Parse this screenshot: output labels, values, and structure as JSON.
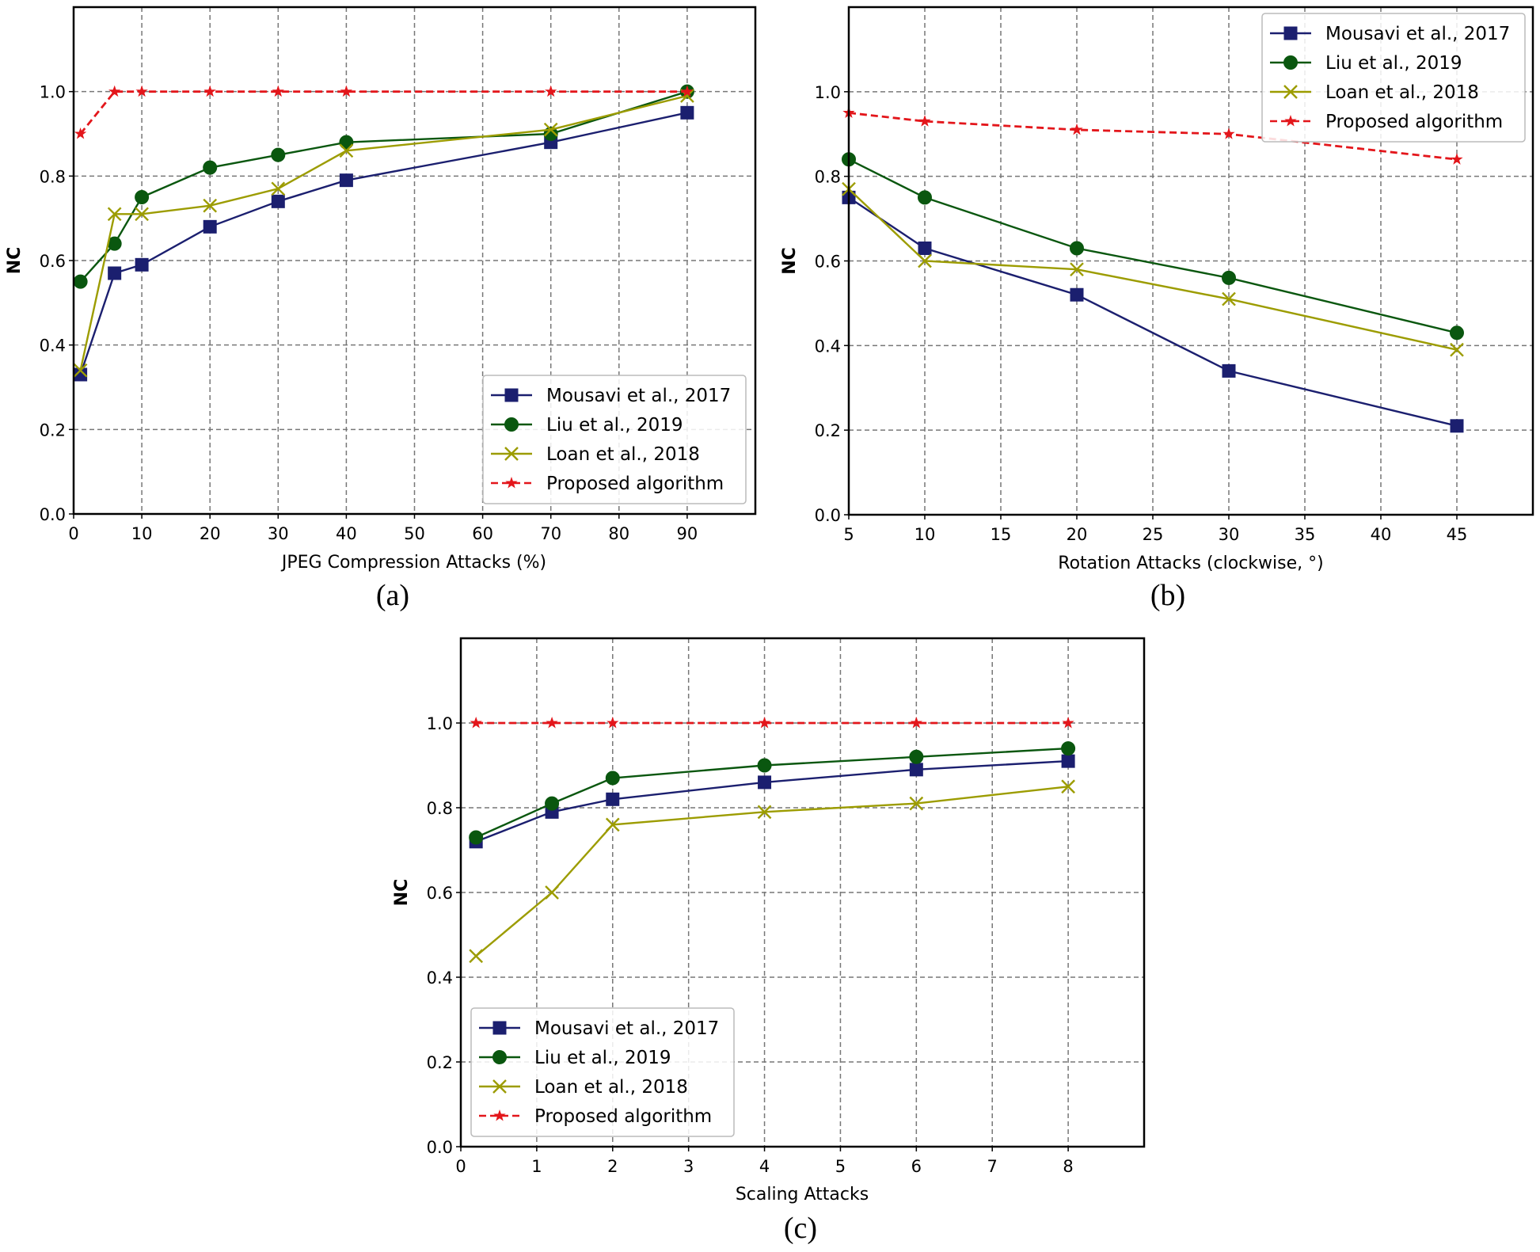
{
  "chart_data": [
    {
      "type": "line",
      "caption": "(a)",
      "xlabel": "JPEG Compression Attacks (%)",
      "ylabel": "NC",
      "xlim": [
        0,
        100
      ],
      "ylim": [
        0,
        1.2
      ],
      "xticks": [
        0,
        10,
        20,
        30,
        40,
        50,
        60,
        70,
        80,
        90
      ],
      "yticks": [
        0.0,
        0.2,
        0.4,
        0.6,
        0.8,
        1.0
      ],
      "grid": true,
      "legend_position": "lower-right",
      "x": [
        1,
        6,
        10,
        20,
        30,
        40,
        70,
        90
      ],
      "series": [
        {
          "name": "Mousavi et al., 2017",
          "marker": "square",
          "color": "#1b1f6f",
          "dashed": false,
          "values": [
            0.33,
            0.57,
            0.59,
            0.68,
            0.74,
            0.79,
            0.88,
            0.95
          ]
        },
        {
          "name": "Liu et al., 2019",
          "marker": "circle",
          "color": "#0a570f",
          "dashed": false,
          "values": [
            0.55,
            0.64,
            0.75,
            0.82,
            0.85,
            0.88,
            0.9,
            1.0
          ]
        },
        {
          "name": "Loan et al., 2018",
          "marker": "x",
          "color": "#9c9c00",
          "dashed": false,
          "values": [
            0.34,
            0.71,
            0.71,
            0.73,
            0.77,
            0.86,
            0.91,
            0.99
          ]
        },
        {
          "name": "Proposed algorithm",
          "marker": "star",
          "color": "#e3161b",
          "dashed": true,
          "values": [
            0.9,
            1.0,
            1.0,
            1.0,
            1.0,
            1.0,
            1.0,
            1.0
          ]
        }
      ]
    },
    {
      "type": "line",
      "caption": "(b)",
      "xlabel": "Rotation Attacks (clockwise, °)",
      "ylabel": "NC",
      "xlim": [
        5,
        50
      ],
      "ylim": [
        0,
        1.2
      ],
      "xticks": [
        5,
        10,
        15,
        20,
        25,
        30,
        35,
        40,
        45
      ],
      "yticks": [
        0.0,
        0.2,
        0.4,
        0.6,
        0.8,
        1.0
      ],
      "grid": true,
      "legend_position": "upper-right",
      "x": [
        5,
        10,
        20,
        30,
        45
      ],
      "series": [
        {
          "name": "Mousavi et al., 2017",
          "marker": "square",
          "color": "#1b1f6f",
          "dashed": false,
          "values": [
            0.75,
            0.63,
            0.52,
            0.34,
            0.21
          ]
        },
        {
          "name": "Liu et al., 2019",
          "marker": "circle",
          "color": "#0a570f",
          "dashed": false,
          "values": [
            0.84,
            0.75,
            0.63,
            0.56,
            0.43
          ]
        },
        {
          "name": "Loan et al., 2018",
          "marker": "x",
          "color": "#9c9c00",
          "dashed": false,
          "values": [
            0.77,
            0.6,
            0.58,
            0.51,
            0.39
          ]
        },
        {
          "name": "Proposed algorithm",
          "marker": "star",
          "color": "#e3161b",
          "dashed": true,
          "values": [
            0.95,
            0.93,
            0.91,
            0.9,
            0.84
          ]
        }
      ]
    },
    {
      "type": "line",
      "caption": "(c)",
      "xlabel": "Scaling Attacks",
      "ylabel": "NC",
      "xlim": [
        0,
        9
      ],
      "ylim": [
        0,
        1.2
      ],
      "xticks": [
        0,
        1,
        2,
        3,
        4,
        5,
        6,
        7,
        8
      ],
      "yticks": [
        0.0,
        0.2,
        0.4,
        0.6,
        0.8,
        1.0
      ],
      "grid": true,
      "legend_position": "lower-left",
      "x": [
        0.2,
        1.2,
        2,
        4,
        6,
        8
      ],
      "series": [
        {
          "name": "Mousavi et al., 2017",
          "marker": "square",
          "color": "#1b1f6f",
          "dashed": false,
          "values": [
            0.72,
            0.79,
            0.82,
            0.86,
            0.89,
            0.91
          ]
        },
        {
          "name": "Liu et al., 2019",
          "marker": "circle",
          "color": "#0a570f",
          "dashed": false,
          "values": [
            0.73,
            0.81,
            0.87,
            0.9,
            0.92,
            0.94
          ]
        },
        {
          "name": "Loan et al., 2018",
          "marker": "x",
          "color": "#9c9c00",
          "dashed": false,
          "values": [
            0.45,
            0.6,
            0.76,
            0.79,
            0.81,
            0.85
          ]
        },
        {
          "name": "Proposed algorithm",
          "marker": "star",
          "color": "#e3161b",
          "dashed": true,
          "values": [
            1.0,
            1.0,
            1.0,
            1.0,
            1.0,
            1.0
          ]
        }
      ]
    }
  ]
}
